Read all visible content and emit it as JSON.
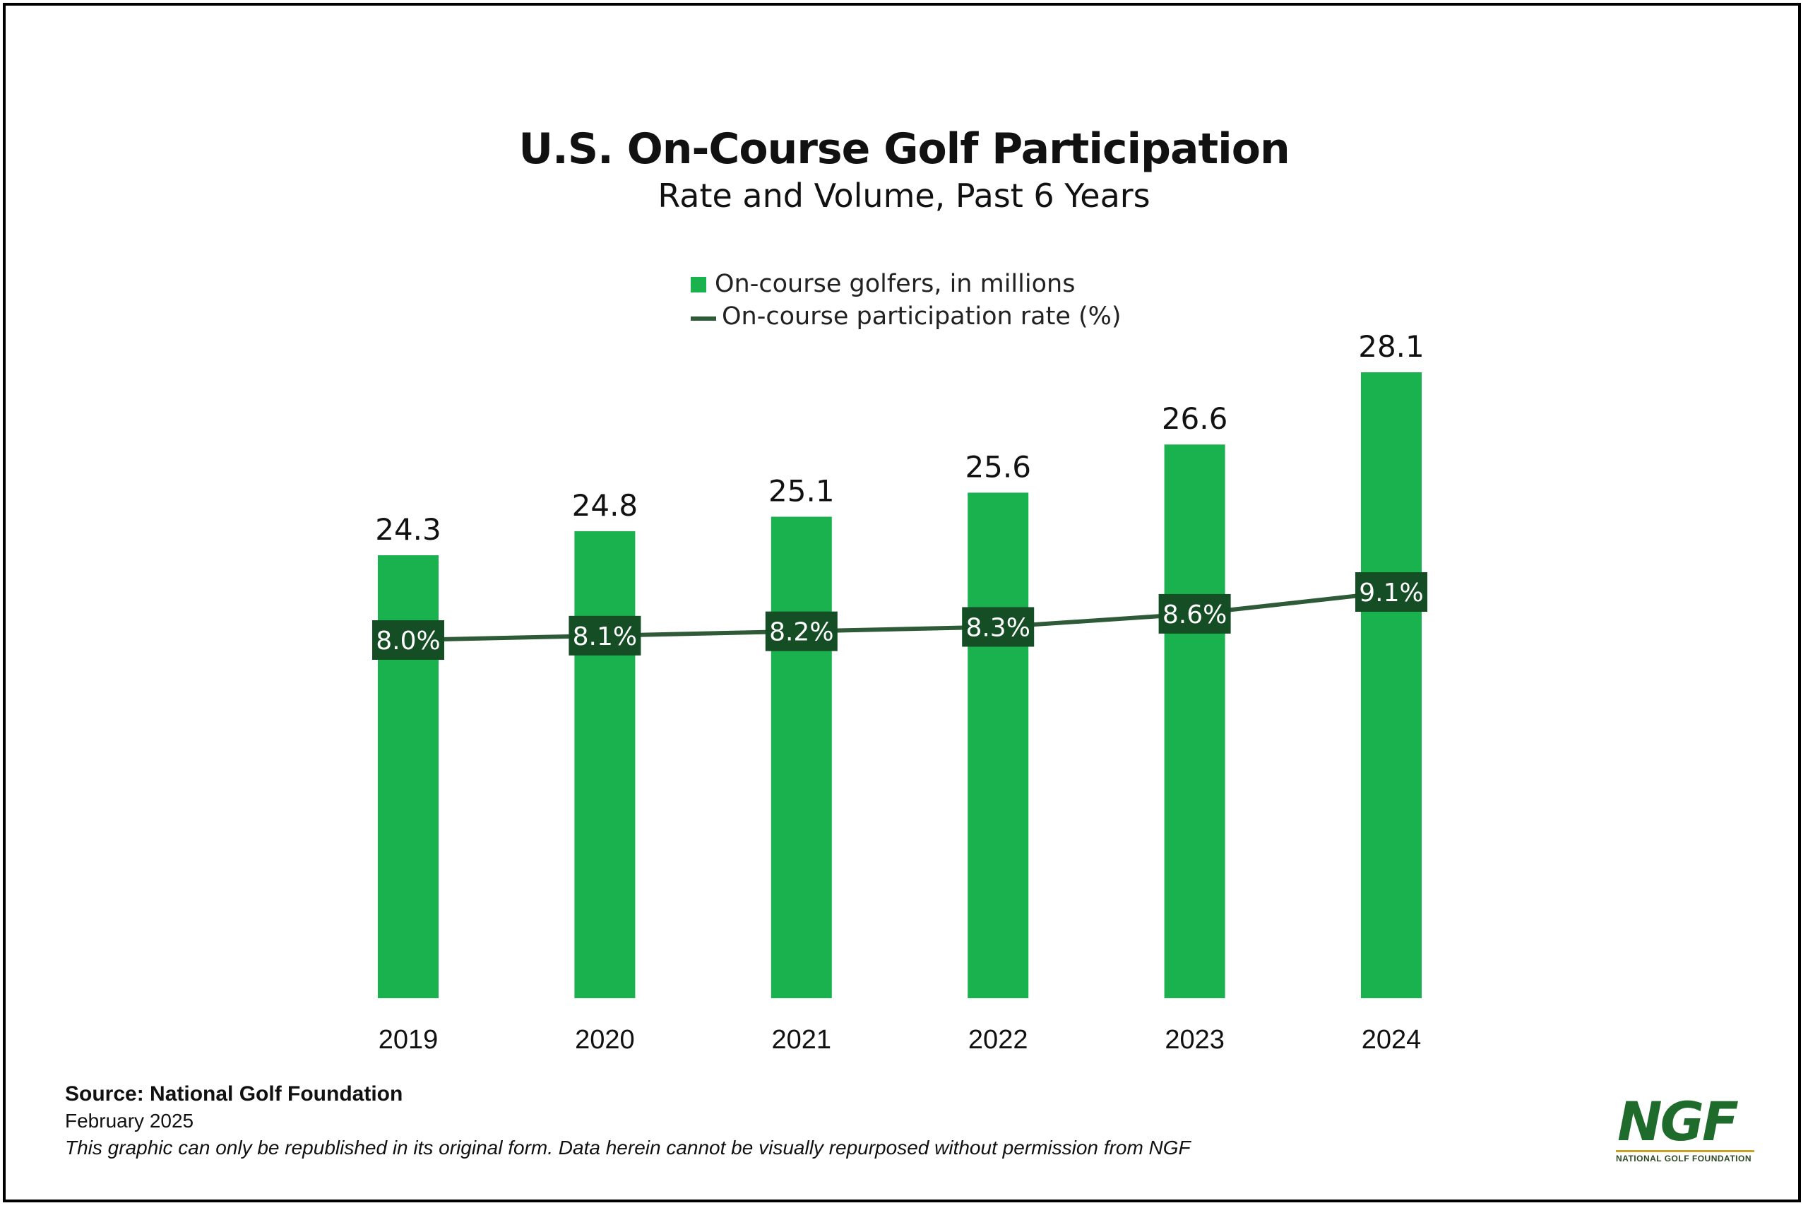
{
  "title": "U.S. On-Course Golf Participation",
  "subtitle": "Rate and Volume, Past 6 Years",
  "legend": {
    "bar_label": "On-course golfers, in millions",
    "line_label": "On-course participation rate (%)"
  },
  "colors": {
    "bar": "#1ab14f",
    "line": "#2e5a37",
    "rate_label_bg": "#154d24",
    "text": "#111111",
    "logo_green": "#1e6b2c",
    "logo_gold": "#c9a227"
  },
  "chart_data": {
    "type": "bar",
    "categories": [
      "2019",
      "2020",
      "2021",
      "2022",
      "2023",
      "2024"
    ],
    "series": [
      {
        "name": "On-course golfers, in millions",
        "type": "bar",
        "values": [
          24.3,
          24.8,
          25.1,
          25.6,
          26.6,
          28.1
        ],
        "labels": [
          "24.3",
          "24.8",
          "25.1",
          "25.6",
          "26.6",
          "28.1"
        ]
      },
      {
        "name": "On-course participation rate (%)",
        "type": "line",
        "values": [
          8.0,
          8.1,
          8.2,
          8.3,
          8.6,
          9.1
        ],
        "labels": [
          "8.0%",
          "8.1%",
          "8.2%",
          "8.3%",
          "8.6%",
          "9.1%"
        ]
      }
    ],
    "xlabel": "",
    "ylabel": "",
    "grid": false,
    "legend_position": "top-center"
  },
  "footer": {
    "source": "Source: National Golf Foundation",
    "date": "February 2025",
    "note": "This graphic can only be republished in its original form. Data herein cannot be visually repurposed without permission from NGF"
  },
  "logo": {
    "mark": "NGF",
    "subtitle": "NATIONAL GOLF FOUNDATION"
  }
}
